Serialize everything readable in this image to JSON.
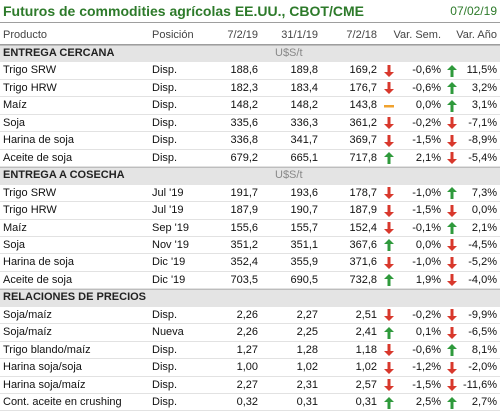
{
  "header": {
    "title": "Futuros de commodities agrícolas EE.UU., CBOT/CME",
    "date": "07/02/19"
  },
  "table": {
    "columns": [
      "Producto",
      "Posición",
      "7/2/19",
      "31/1/19",
      "7/2/18",
      "Var. Sem.",
      "Var. Año"
    ],
    "icon_colors": {
      "up": "#2f9a3c",
      "down": "#d8382c",
      "flat": "#f0a22e"
    },
    "sections": [
      {
        "title": "ENTREGA CERCANA",
        "unit": "U$S/t",
        "rows": [
          {
            "cells": [
              "Trigo SRW",
              "Disp.",
              "188,6",
              "189,8",
              "169,2",
              "-0,6%",
              "11,5%"
            ],
            "icons": [
              "down",
              "up"
            ]
          },
          {
            "cells": [
              "Trigo HRW",
              "Disp.",
              "182,3",
              "183,4",
              "176,7",
              "-0,6%",
              "3,2%"
            ],
            "icons": [
              "down",
              "up"
            ]
          },
          {
            "cells": [
              "Maíz",
              "Disp.",
              "148,2",
              "148,2",
              "143,8",
              "0,0%",
              "3,1%"
            ],
            "icons": [
              "flat",
              "up"
            ]
          },
          {
            "cells": [
              "Soja",
              "Disp.",
              "335,6",
              "336,3",
              "361,2",
              "-0,2%",
              "-7,1%"
            ],
            "icons": [
              "down",
              "down"
            ]
          },
          {
            "cells": [
              "Harina de soja",
              "Disp.",
              "336,8",
              "341,7",
              "369,7",
              "-1,5%",
              "-8,9%"
            ],
            "icons": [
              "down",
              "down"
            ]
          },
          {
            "cells": [
              "Aceite de soja",
              "Disp.",
              "679,2",
              "665,1",
              "717,8",
              "2,1%",
              "-5,4%"
            ],
            "icons": [
              "up",
              "down"
            ]
          }
        ]
      },
      {
        "title": "ENTREGA A COSECHA",
        "unit": "U$S/t",
        "rows": [
          {
            "cells": [
              "Trigo SRW",
              "Jul '19",
              "191,7",
              "193,6",
              "178,7",
              "-1,0%",
              "7,3%"
            ],
            "icons": [
              "down",
              "up"
            ]
          },
          {
            "cells": [
              "Trigo HRW",
              "Jul '19",
              "187,9",
              "190,7",
              "187,9",
              "-1,5%",
              "0,0%"
            ],
            "icons": [
              "down",
              "down"
            ]
          },
          {
            "cells": [
              "Maíz",
              "Sep '19",
              "155,6",
              "155,7",
              "152,4",
              "-0,1%",
              "2,1%"
            ],
            "icons": [
              "down",
              "up"
            ]
          },
          {
            "cells": [
              "Soja",
              "Nov '19",
              "351,2",
              "351,1",
              "367,6",
              "0,0%",
              "-4,5%"
            ],
            "icons": [
              "up",
              "down"
            ]
          },
          {
            "cells": [
              "Harina de soja",
              "Dic '19",
              "352,4",
              "355,9",
              "371,6",
              "-1,0%",
              "-5,2%"
            ],
            "icons": [
              "down",
              "down"
            ]
          },
          {
            "cells": [
              "Aceite de soja",
              "Dic '19",
              "703,5",
              "690,5",
              "732,8",
              "1,9%",
              "-4,0%"
            ],
            "icons": [
              "up",
              "down"
            ]
          }
        ]
      },
      {
        "title": "RELACIONES DE PRECIOS",
        "rows": [
          {
            "cells": [
              "Soja/maíz",
              "Disp.",
              "2,26",
              "2,27",
              "2,51",
              "-0,2%",
              "-9,9%"
            ],
            "icons": [
              "down",
              "down"
            ]
          },
          {
            "cells": [
              "Soja/maíz",
              "Nueva",
              "2,26",
              "2,25",
              "2,41",
              "0,1%",
              "-6,5%"
            ],
            "icons": [
              "up",
              "down"
            ]
          },
          {
            "cells": [
              "Trigo blando/maíz",
              "Disp.",
              "1,27",
              "1,28",
              "1,18",
              "-0,6%",
              "8,1%"
            ],
            "icons": [
              "down",
              "up"
            ]
          },
          {
            "cells": [
              "Harina soja/soja",
              "Disp.",
              "1,00",
              "1,02",
              "1,02",
              "-1,2%",
              "-2,0%"
            ],
            "icons": [
              "down",
              "down"
            ]
          },
          {
            "cells": [
              "Harina soja/maíz",
              "Disp.",
              "2,27",
              "2,31",
              "2,57",
              "-1,5%",
              "-11,6%"
            ],
            "icons": [
              "down",
              "down"
            ]
          },
          {
            "cells": [
              "Cont. aceite en crushing",
              "Disp.",
              "0,32",
              "0,31",
              "0,31",
              "2,5%",
              "2,7%"
            ],
            "icons": [
              "up",
              "up"
            ]
          }
        ]
      }
    ]
  }
}
